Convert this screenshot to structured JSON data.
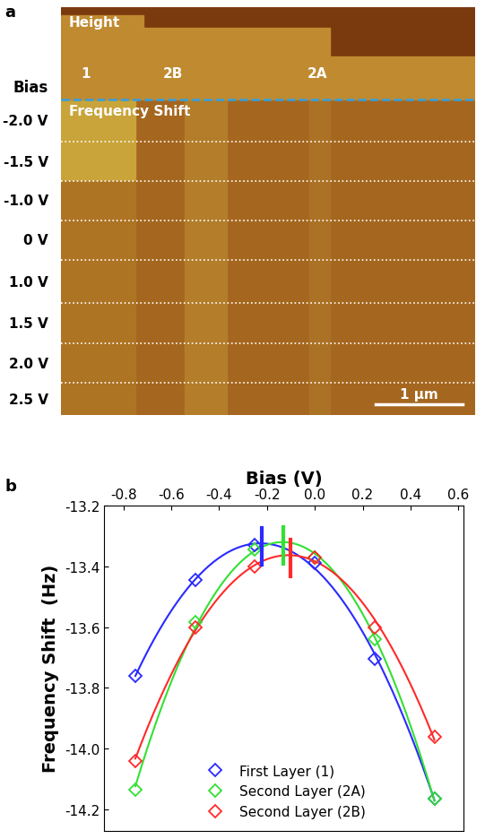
{
  "panel_a": {
    "label": "a",
    "height_label": "Height",
    "freq_label": "Frequency Shift",
    "regions": [
      "1",
      "2B",
      "2A"
    ],
    "bias_title": "Bias",
    "bias_values": [
      "-2.0 V",
      "-1.5 V",
      "-1.0 V",
      "0 V",
      "1.0 V",
      "1.5 V",
      "2.0 V",
      "2.5 V"
    ],
    "scale_bar": "1 µm"
  },
  "chart_data": {
    "type": "scatter",
    "panel_label": "b",
    "x_label": "Bias (V)",
    "y_label": "Frequency Shift  (Hz)",
    "x": [
      -0.75,
      -0.5,
      -0.25,
      0.0,
      0.25,
      0.5
    ],
    "series": [
      {
        "name": "First Layer (1)",
        "color": "#2a2aff",
        "marker": "diamond",
        "values": [
          -13.76,
          -13.445,
          -13.33,
          -13.39,
          -13.705,
          -14.165
        ],
        "peak_bias": -0.22
      },
      {
        "name": "Second Layer (2A)",
        "color": "#33e033",
        "marker": "diamond",
        "values": [
          -14.135,
          -13.585,
          -13.345,
          -13.37,
          -13.64,
          -14.165
        ],
        "peak_bias": -0.13
      },
      {
        "name": "Second Layer (2B)",
        "color": "#ff2a2a",
        "marker": "diamond",
        "values": [
          -14.04,
          -13.6,
          -13.4,
          -13.37,
          -13.6,
          -13.96
        ],
        "peak_bias": -0.1
      }
    ],
    "xlim": [
      -0.88,
      0.62
    ],
    "xticks": [
      -0.8,
      -0.6,
      -0.4,
      -0.2,
      0.0,
      0.2,
      0.4,
      0.6
    ],
    "ylim": [
      -14.27,
      -13.2
    ],
    "yticks": [
      -14.2,
      -14.0,
      -13.8,
      -13.6,
      -13.4,
      -13.2
    ],
    "legend": "lower center"
  }
}
